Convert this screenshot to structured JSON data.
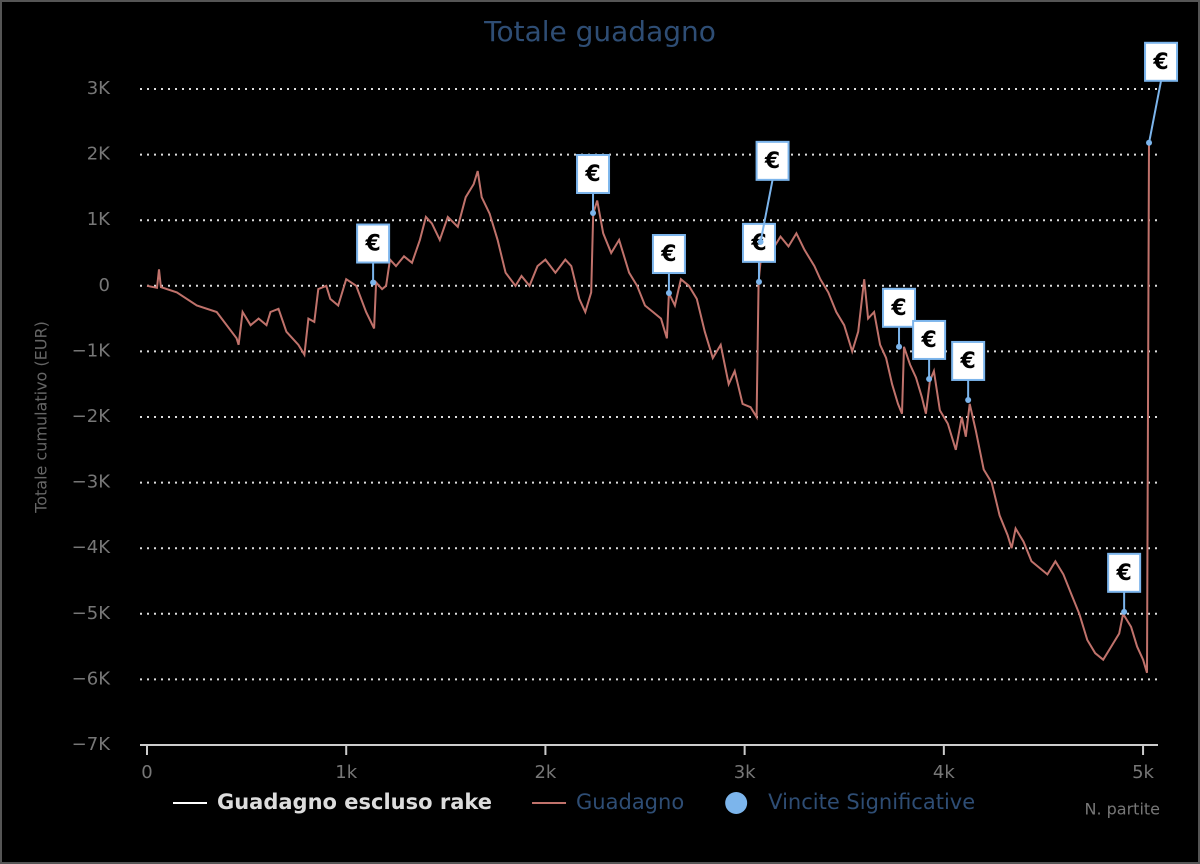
{
  "chart_data": {
    "type": "line",
    "title": "Totale guadagno",
    "x_label": "N. partite",
    "y_label": "Totale cumulativo (EUR)",
    "xlim": [
      0,
      5075
    ],
    "ylim": [
      -7000,
      3000
    ],
    "xticks": [
      0,
      {
        "value": 1000,
        "label": "1k"
      },
      {
        "value": 2000,
        "label": "2k"
      },
      {
        "value": 3000,
        "label": "3k"
      },
      {
        "value": 4000,
        "label": "4k"
      },
      {
        "value": 5000,
        "label": "5k"
      }
    ],
    "yticks": [
      {
        "value": -7000,
        "label": "−7K"
      },
      {
        "value": -6000,
        "label": "−6K"
      },
      {
        "value": -5000,
        "label": "−5K"
      },
      {
        "value": -4000,
        "label": "−4K"
      },
      {
        "value": -3000,
        "label": "−3K"
      },
      {
        "value": -2000,
        "label": "−2K"
      },
      {
        "value": -1000,
        "label": "−1K"
      },
      0,
      {
        "value": 1000,
        "label": "1K"
      },
      {
        "value": 2000,
        "label": "2K"
      },
      {
        "value": 3000,
        "label": "3K"
      }
    ],
    "grid": true,
    "series": [
      {
        "name": "Guadagno escluso rake",
        "color": "#ffffff",
        "visible": false
      },
      {
        "name": "Guadagno",
        "color": "#c0726b",
        "x": [
          0,
          50,
          60,
          70,
          150,
          250,
          350,
          450,
          460,
          480,
          520,
          560,
          600,
          620,
          660,
          700,
          760,
          790,
          810,
          840,
          860,
          900,
          920,
          960,
          1000,
          1050,
          1100,
          1140,
          1150,
          1180,
          1200,
          1220,
          1250,
          1290,
          1330,
          1370,
          1400,
          1430,
          1470,
          1510,
          1560,
          1600,
          1640,
          1660,
          1680,
          1720,
          1760,
          1800,
          1850,
          1880,
          1920,
          1960,
          2000,
          2050,
          2100,
          2130,
          2170,
          2200,
          2230,
          2240,
          2260,
          2290,
          2330,
          2370,
          2420,
          2460,
          2500,
          2540,
          2580,
          2610,
          2620,
          2650,
          2680,
          2720,
          2760,
          2800,
          2840,
          2880,
          2920,
          2950,
          2990,
          3030,
          3060,
          3070,
          3090,
          3130,
          3180,
          3220,
          3260,
          3300,
          3350,
          3380,
          3420,
          3460,
          3500,
          3540,
          3570,
          3600,
          3620,
          3650,
          3680,
          3710,
          3740,
          3770,
          3790,
          3800,
          3830,
          3860,
          3890,
          3910,
          3930,
          3950,
          3980,
          4020,
          4060,
          4090,
          4110,
          4130,
          4160,
          4200,
          4240,
          4280,
          4320,
          4340,
          4360,
          4400,
          4440,
          4480,
          4520,
          4560,
          4600,
          4640,
          4680,
          4720,
          4760,
          4800,
          4840,
          4880,
          4900,
          4920,
          4940,
          4970,
          5000,
          5020,
          5030
        ],
        "values": [
          0,
          -30,
          250,
          -20,
          -100,
          -300,
          -400,
          -800,
          -900,
          -400,
          -600,
          -500,
          -600,
          -400,
          -350,
          -700,
          -900,
          -1050,
          -500,
          -550,
          -50,
          0,
          -200,
          -300,
          100,
          0,
          -400,
          -650,
          50,
          -50,
          0,
          400,
          300,
          450,
          350,
          700,
          1050,
          950,
          700,
          1050,
          900,
          1350,
          1550,
          1750,
          1350,
          1100,
          700,
          200,
          0,
          150,
          0,
          300,
          400,
          200,
          400,
          300,
          -200,
          -400,
          -100,
          1100,
          1300,
          800,
          500,
          700,
          200,
          0,
          -300,
          -400,
          -500,
          -800,
          -110,
          -300,
          100,
          0,
          -200,
          -700,
          -1100,
          -900,
          -1500,
          -1300,
          -1800,
          -1850,
          -2000,
          60,
          700,
          500,
          750,
          600,
          800,
          550,
          300,
          100,
          -100,
          -400,
          -600,
          -1000,
          -700,
          100,
          -500,
          -400,
          -900,
          -1100,
          -1500,
          -1800,
          -1950,
          -930,
          -1200,
          -1400,
          -1700,
          -1950,
          -1450,
          -1300,
          -1900,
          -2100,
          -2500,
          -2000,
          -2300,
          -1800,
          -2200,
          -2800,
          -3000,
          -3500,
          -3800,
          -4000,
          -3700,
          -3900,
          -4200,
          -4300,
          -4400,
          -4200,
          -4400,
          -4700,
          -5000,
          -5400,
          -5600,
          -5700,
          -5500,
          -5300,
          -5000,
          -5100,
          -5200,
          -5500,
          -5700,
          -5900,
          2200
        ]
      },
      {
        "name": "Vincite Significative",
        "color": "#7cb5ec",
        "flag_label": "€",
        "x": [
          1135,
          2239,
          2620,
          3072,
          3080,
          3775,
          3926,
          4122,
          4905,
          5030
        ],
        "values": [
          50,
          1110,
          -110,
          60,
          670,
          -930,
          -1420,
          -1740,
          -4970,
          2180
        ]
      }
    ]
  }
}
